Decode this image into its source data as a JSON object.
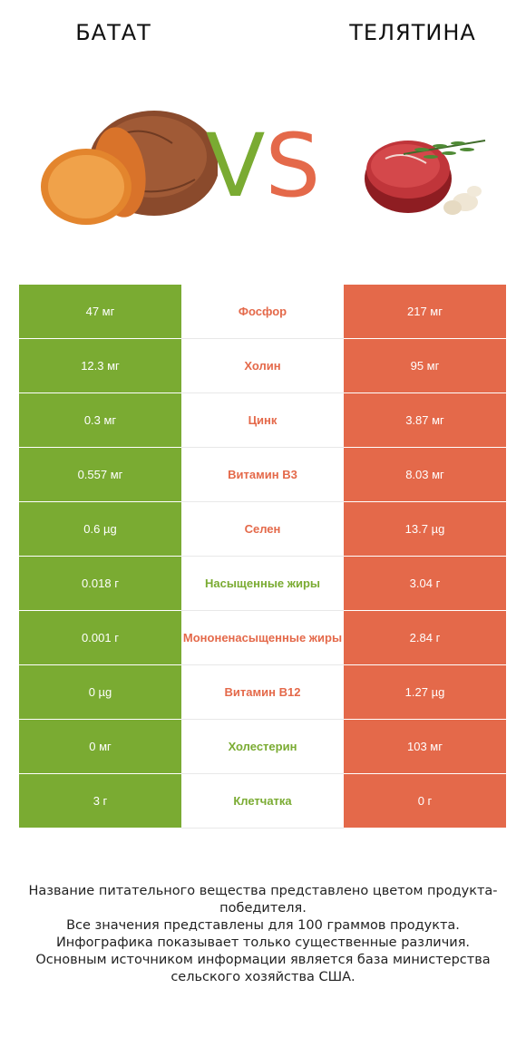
{
  "header": {
    "left_title": "БАТАТ",
    "right_title": "ТЕЛЯТИНА",
    "vs_v": "V",
    "vs_s": "S"
  },
  "colors": {
    "left": "#7aab32",
    "right": "#e4694a"
  },
  "rows": [
    {
      "left": "47 мг",
      "name": "Фосфор",
      "right": "217 мг",
      "winner": "right"
    },
    {
      "left": "12.3 мг",
      "name": "Холин",
      "right": "95 мг",
      "winner": "right"
    },
    {
      "left": "0.3 мг",
      "name": "Цинк",
      "right": "3.87 мг",
      "winner": "right"
    },
    {
      "left": "0.557 мг",
      "name": "Витамин B3",
      "right": "8.03 мг",
      "winner": "right"
    },
    {
      "left": "0.6 µg",
      "name": "Селен",
      "right": "13.7 µg",
      "winner": "right"
    },
    {
      "left": "0.018 г",
      "name": "Насыщенные жиры",
      "right": "3.04 г",
      "winner": "left"
    },
    {
      "left": "0.001 г",
      "name": "Мононенасыщенные жиры",
      "right": "2.84 г",
      "winner": "right"
    },
    {
      "left": "0 µg",
      "name": "Витамин B12",
      "right": "1.27 µg",
      "winner": "right"
    },
    {
      "left": "0 мг",
      "name": "Холестерин",
      "right": "103 мг",
      "winner": "left"
    },
    {
      "left": "3 г",
      "name": "Клетчатка",
      "right": "0 г",
      "winner": "left"
    }
  ],
  "footer": {
    "line1": "Название питательного вещества представлено цветом продукта-победителя.",
    "line2": "Все значения представлены для 100 граммов продукта.",
    "line3": "Инфографика показывает только существенные различия.",
    "line4": "Основным источником информации является база министерства сельского хозяйства США."
  }
}
